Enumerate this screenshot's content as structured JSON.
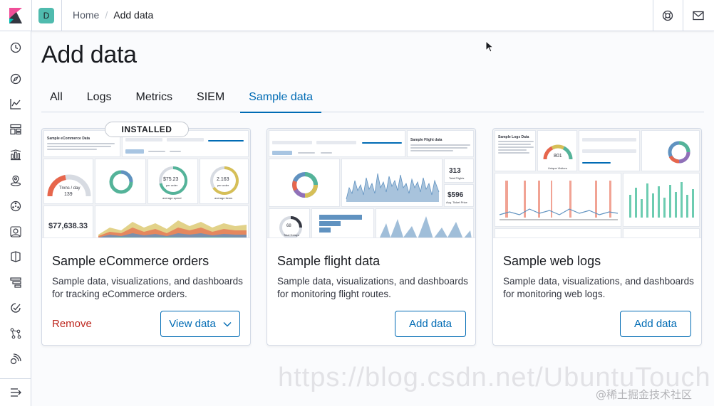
{
  "header": {
    "space_initial": "D",
    "breadcrumbs": [
      "Home",
      "Add data"
    ]
  },
  "page": {
    "title": "Add data",
    "tabs": [
      "All",
      "Logs",
      "Metrics",
      "SIEM",
      "Sample data"
    ],
    "active_tab": "Sample data"
  },
  "cards": [
    {
      "title": "Sample eCommerce orders",
      "description": "Sample data, visualizations, and dashboards for tracking eCommerce orders.",
      "badge": "INSTALLED",
      "secondary_action": "Remove",
      "primary_action": "View data",
      "preview": {
        "title": "Sample eCommerce Data",
        "gauge_label": "Trxns / day",
        "gauge_value": "139",
        "avg_price": "$75.23",
        "avg_price_sub": "per order",
        "avg_qty": "2.163",
        "avg_qty_sub": "per order",
        "revenue": "$77,638.33",
        "panel_avg_spend": "average spend",
        "panel_avg_items": "average items"
      }
    },
    {
      "title": "Sample flight data",
      "description": "Sample data, visualizations, and dashboards for monitoring flight routes.",
      "primary_action": "Add data",
      "preview": {
        "title": "Sample Flight data",
        "total_flights": "313",
        "total_flights_label": "Total Flights",
        "avg_price": "$596",
        "avg_price_label": "Avg. Ticket Price",
        "delays": "68",
        "delays_label": "Total Delays"
      }
    },
    {
      "title": "Sample web logs",
      "description": "Sample data, visualizations, and dashboards for monitoring web logs.",
      "primary_action": "Add data",
      "preview": {
        "title": "Sample Logs Data",
        "visitors": "801",
        "visitors_label": "Unique Visitors"
      }
    }
  ],
  "watermark": {
    "url": "https://blog.csdn.net/UbuntuTouch",
    "credit": "@稀土掘金技术社区"
  },
  "colors": {
    "primary": "#006bb4",
    "danger": "#bd271e",
    "avatar": "#4fbbae",
    "border": "#d3dae6"
  }
}
